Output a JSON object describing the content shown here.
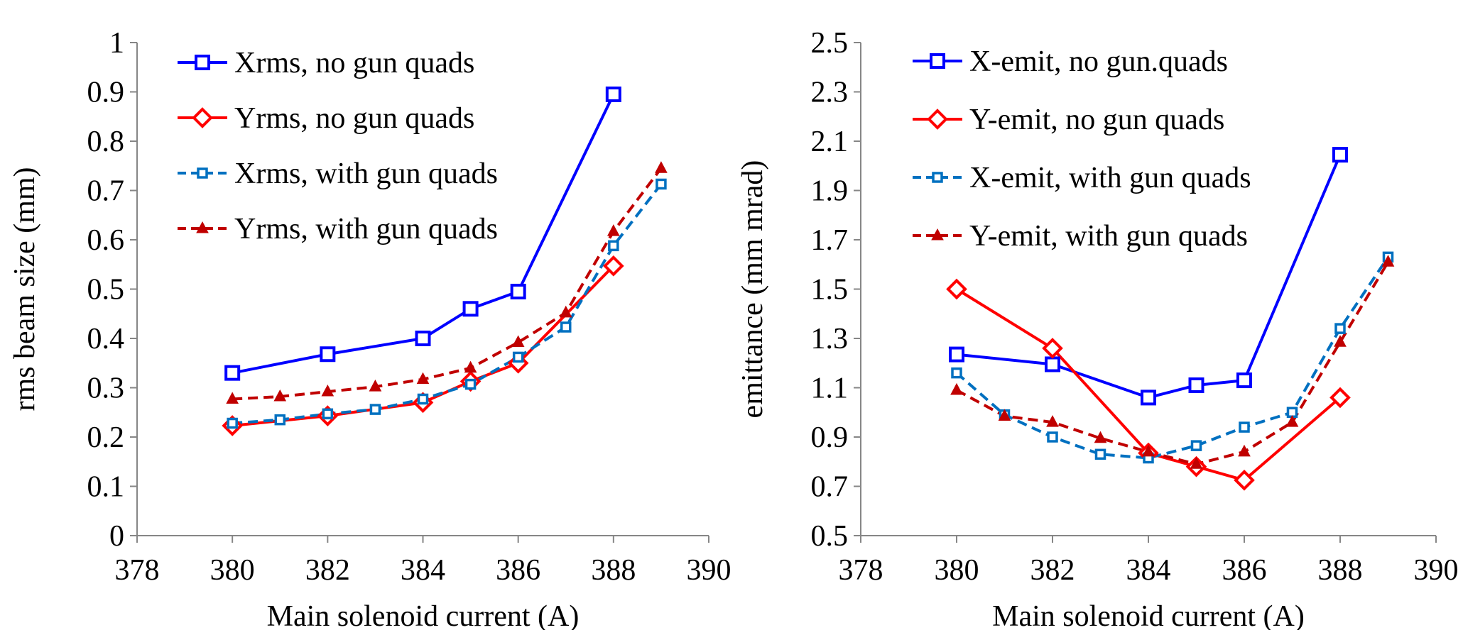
{
  "chart_data": [
    {
      "type": "line",
      "title": "",
      "xlabel": "Main solenoid current (A)",
      "ylabel": "rms beam size (mm)",
      "xlim": [
        378,
        390
      ],
      "ylim": [
        0,
        1
      ],
      "xticks": [
        378,
        380,
        382,
        384,
        386,
        388,
        390
      ],
      "yticks": [
        0,
        0.1,
        0.2,
        0.3,
        0.4,
        0.5,
        0.6,
        0.7,
        0.8,
        0.9,
        1
      ],
      "ytick_labels": [
        "0",
        "0.1",
        "0.2",
        "0.3",
        "0.4",
        "0.5",
        "0.6",
        "0.7",
        "0.8",
        "0.9",
        "1"
      ],
      "legend_position": "top-left",
      "series": [
        {
          "name": "Xrms, no gun quads",
          "color": "#0000FF",
          "line": "solid",
          "marker": "square",
          "x": [
            380,
            382,
            384,
            385,
            386,
            388
          ],
          "y": [
            0.33,
            0.368,
            0.4,
            0.46,
            0.495,
            0.895
          ]
        },
        {
          "name": "Yrms, no gun quads",
          "color": "#FF0000",
          "line": "solid",
          "marker": "diamond",
          "x": [
            380,
            382,
            384,
            385,
            386,
            388
          ],
          "y": [
            0.223,
            0.243,
            0.27,
            0.313,
            0.35,
            0.547
          ]
        },
        {
          "name": "Xrms, with gun quads",
          "color": "#0070C0",
          "line": "dashed",
          "marker": "small-square",
          "x": [
            380,
            381,
            382,
            383,
            384,
            385,
            386,
            387,
            388,
            389
          ],
          "y": [
            0.228,
            0.235,
            0.247,
            0.256,
            0.277,
            0.307,
            0.362,
            0.423,
            0.588,
            0.713
          ]
        },
        {
          "name": "Yrms, with gun quads",
          "color": "#C00000",
          "line": "dashed",
          "marker": "triangle",
          "x": [
            380,
            381,
            382,
            383,
            384,
            385,
            386,
            387,
            388,
            389
          ],
          "y": [
            0.277,
            0.282,
            0.292,
            0.302,
            0.317,
            0.34,
            0.392,
            0.452,
            0.617,
            0.745
          ]
        }
      ]
    },
    {
      "type": "line",
      "title": "",
      "xlabel": "Main solenoid current (A)",
      "ylabel": "emittance (mm mrad)",
      "xlim": [
        378,
        390
      ],
      "ylim": [
        0.5,
        2.5
      ],
      "xticks": [
        378,
        380,
        382,
        384,
        386,
        388,
        390
      ],
      "yticks": [
        0.5,
        0.7,
        0.9,
        1.1,
        1.3,
        1.5,
        1.7,
        1.9,
        2.1,
        2.3,
        2.5
      ],
      "ytick_labels": [
        "0.5",
        "0.7",
        "0.9",
        "1.1",
        "1.3",
        "1.5",
        "1.7",
        "1.9",
        "2.1",
        "2.3",
        "2.5"
      ],
      "legend_position": "top-left",
      "series": [
        {
          "name": "X-emit, no gun.quads",
          "color": "#0000FF",
          "line": "solid",
          "marker": "square",
          "x": [
            380,
            382,
            384,
            385,
            386,
            388
          ],
          "y": [
            1.235,
            1.195,
            1.06,
            1.11,
            1.13,
            2.045
          ]
        },
        {
          "name": "Y-emit, no gun quads",
          "color": "#FF0000",
          "line": "solid",
          "marker": "diamond",
          "x": [
            380,
            382,
            384,
            385,
            386,
            388
          ],
          "y": [
            1.5,
            1.26,
            0.835,
            0.78,
            0.725,
            1.06
          ]
        },
        {
          "name": "X-emit, with gun quads",
          "color": "#0070C0",
          "line": "dashed",
          "marker": "small-square",
          "x": [
            380,
            381,
            382,
            383,
            384,
            385,
            386,
            387,
            388,
            389
          ],
          "y": [
            1.16,
            0.99,
            0.9,
            0.83,
            0.815,
            0.865,
            0.94,
            1.0,
            1.34,
            1.63
          ]
        },
        {
          "name": "Y-emit, with gun quads",
          "color": "#C00000",
          "line": "dashed",
          "marker": "triangle",
          "x": [
            380,
            381,
            382,
            383,
            384,
            385,
            386,
            387,
            388,
            389
          ],
          "y": [
            1.09,
            0.985,
            0.96,
            0.895,
            0.84,
            0.79,
            0.84,
            0.96,
            1.285,
            1.61
          ]
        }
      ]
    }
  ]
}
